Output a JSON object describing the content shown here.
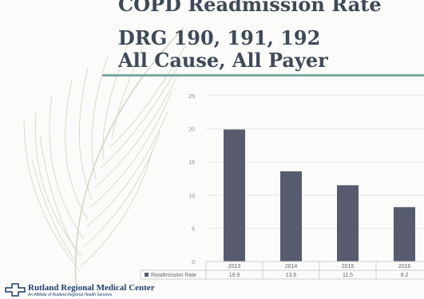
{
  "slide": {
    "title_lines": [
      "COPD Readmission Rate",
      "DRG 190, 191, 192",
      "All Cause, All Payer"
    ]
  },
  "logo": {
    "name": "Rutland Regional Medical Center",
    "tagline": "An Affiliate of Rutland Regional Health Services"
  },
  "chart_data": {
    "type": "bar",
    "categories": [
      "2013",
      "2014",
      "2015",
      "2016"
    ],
    "series": [
      {
        "name": "Readmission Rate",
        "values": [
          19.9,
          13.6,
          11.5,
          8.2
        ],
        "labels": [
          "19.9",
          "13.6",
          "11.5",
          "8.2"
        ]
      }
    ],
    "ylim": [
      0,
      25
    ],
    "yticks": [
      0,
      5,
      10,
      15,
      20,
      25
    ],
    "grid": true,
    "legend": "data-table",
    "colors": {
      "bar": "#565c6e",
      "grid": "#e6e6e6",
      "table_border": "#cfcfcf"
    }
  }
}
